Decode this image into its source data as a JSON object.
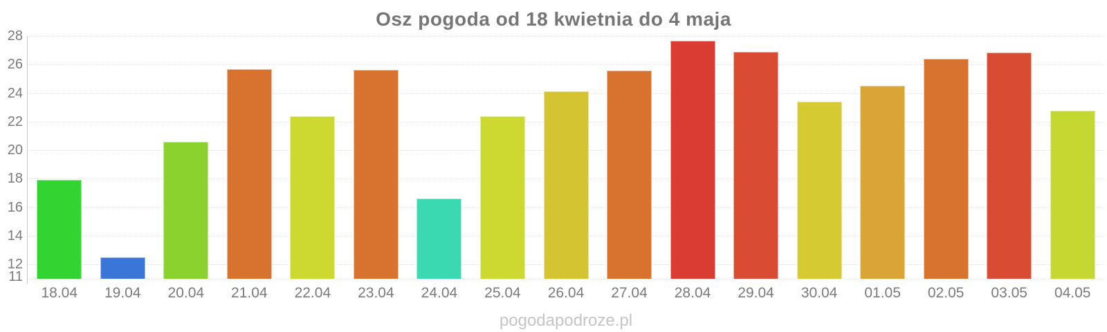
{
  "title": "Osz pogoda od 18 kwietnia do 4 maja",
  "watermark": "pogodapodroze.pl",
  "colors": {
    "title_text": "#757575",
    "axis_labels": "#7a7a7a",
    "axis_line": "#c9c9c9",
    "gridline": "#e4e4e4",
    "watermark_text": "#c5c5c5",
    "background": "#ffffff"
  },
  "chart_data": {
    "type": "bar",
    "title": "Osz pogoda od 18 kwietnia do 4 maja",
    "xlabel": "",
    "ylabel": "",
    "ylim": [
      11,
      28
    ],
    "yticks": [
      28,
      26,
      24,
      22,
      20,
      18,
      16,
      14,
      12,
      11
    ],
    "grid": "horizontal-dotted",
    "legend": "none",
    "categories": [
      "18.04",
      "19.04",
      "20.04",
      "21.04",
      "22.04",
      "23.04",
      "24.04",
      "25.04",
      "26.04",
      "27.04",
      "28.04",
      "29.04",
      "30.04",
      "01.05",
      "02.05",
      "03.05",
      "04.05"
    ],
    "values": [
      17.95,
      12.5,
      20.6,
      25.7,
      22.4,
      25.65,
      16.6,
      22.4,
      24.15,
      25.6,
      27.65,
      26.9,
      23.4,
      24.5,
      26.4,
      26.85,
      22.75
    ],
    "bar_colors": [
      "#32d432",
      "#3a76d8",
      "#8ad32f",
      "#d8732f",
      "#cdd930",
      "#d8732f",
      "#3ad9b1",
      "#cdd930",
      "#d5c432",
      "#d8732f",
      "#da3b33",
      "#d94c33",
      "#d5ca32",
      "#daa437",
      "#d8732f",
      "#d94c33",
      "#c4d831"
    ]
  }
}
